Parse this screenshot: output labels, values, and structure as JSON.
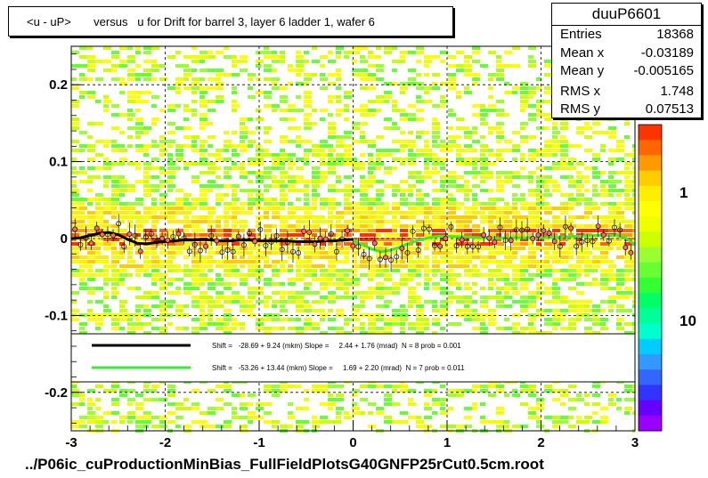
{
  "title": "<u - uP>       versus   u for Drift for barrel 3, layer 6 ladder 1, wafer 6",
  "stats": {
    "name": "duuP6601",
    "rows": [
      {
        "label": "Entries",
        "value": "18368"
      },
      {
        "label": "Mean x",
        "value": "-0.03189"
      },
      {
        "label": "Mean y",
        "value": "-0.005165"
      },
      {
        "label": "RMS x",
        "value": "1.748"
      },
      {
        "label": "RMS y",
        "value": "0.07513"
      }
    ]
  },
  "footer": "../P06ic_cuProductionMinBias_FullFieldPlotsG40GNFP25rCut0.5cm.root",
  "colors": {
    "fit_black": "#000000",
    "fit_green": "#33ee33",
    "palette": [
      "#ffcc00",
      "#ffee00",
      "#ffff00",
      "#eeff00",
      "#ccff00",
      "#99ff33",
      "#66ff33",
      "#33ff33",
      "#00ff66",
      "#00ff99",
      "#00ffcc",
      "#00ccff",
      "#3399ff",
      "#3366ff",
      "#3333ff",
      "#6600ff",
      "#9900ff"
    ],
    "hot": [
      "#ff3300",
      "#ff6600",
      "#ff9900"
    ]
  },
  "chart_data": {
    "type": "heatmap",
    "title": "<u - uP>       versus   u for Drift for barrel 3, layer 6 ladder 1, wafer 6",
    "xlim": [
      -3,
      3
    ],
    "ylim": [
      -0.25,
      0.25
    ],
    "x_ticks": [
      "-3",
      "-2",
      "-1",
      "0",
      "1",
      "2",
      "3"
    ],
    "y_ticks": [
      "-0.2",
      "-0.1",
      "0",
      "0.1",
      "0.2"
    ],
    "colorbar_ticks": [
      "1",
      "10"
    ],
    "grid": true,
    "profile_black": {
      "x": [
        -3.0,
        -2.9,
        -2.8,
        -2.7,
        -2.6,
        -2.5,
        -2.4,
        -2.3,
        -2.2,
        -2.1,
        -2.0,
        -1.9,
        -1.8,
        -1.7,
        -1.6,
        -1.5,
        -1.4,
        -1.3,
        -1.2,
        -1.1,
        -1.0,
        -0.9,
        -0.8,
        -0.7,
        -0.6,
        -0.5,
        -0.4,
        -0.3,
        -0.2,
        -0.1,
        0.0
      ],
      "y": [
        0.0,
        0.001,
        0.004,
        0.007,
        0.008,
        0.005,
        -0.001,
        -0.006,
        -0.007,
        -0.005,
        -0.004,
        -0.003,
        -0.002,
        -0.002,
        -0.001,
        -0.002,
        -0.003,
        -0.003,
        -0.002,
        -0.002,
        -0.003,
        -0.003,
        -0.003,
        -0.003,
        -0.004,
        -0.004,
        -0.004,
        -0.003,
        -0.003,
        -0.002,
        -0.001
      ]
    },
    "profile_green": {
      "x": [
        0.0,
        0.1,
        0.2,
        0.3,
        0.4,
        0.5,
        0.6,
        0.7,
        0.8,
        0.9,
        1.0,
        1.2,
        1.4,
        1.6,
        1.8,
        2.0,
        2.2,
        2.4,
        2.6,
        2.8,
        2.9,
        3.0
      ],
      "y": [
        -0.003,
        -0.008,
        -0.014,
        -0.017,
        -0.015,
        -0.011,
        -0.006,
        -0.002,
        0.001,
        0.003,
        0.003,
        0.002,
        0.001,
        0.001,
        0.001,
        0.001,
        0.002,
        0.003,
        0.004,
        0.004,
        0.001,
        -0.008
      ]
    },
    "fits": [
      {
        "color": "black",
        "text": "Shift =   -28.69 + 9.24 (mkm) Slope =     2.44 + 1.76 (mrad)  N = 8 prob = 0.001"
      },
      {
        "color": "green",
        "text": "Shift =   -53.26 + 13.44 (mkm) Slope =     1.69 + 2.20 (mrad)  N = 7 prob = 0.011"
      }
    ]
  }
}
